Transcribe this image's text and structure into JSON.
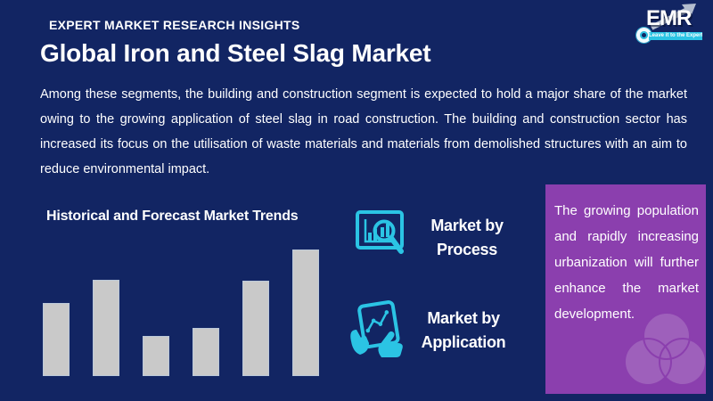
{
  "colors": {
    "background": "#122563",
    "accent_teal": "#2BC4E4",
    "purple_box": "#8B3FAE",
    "bar_fill": "#C9C9C9",
    "logo_arrow": "#B3BDCF",
    "text": "#FFFFFF"
  },
  "header": {
    "tagline": "EXPERT MARKET RESEARCH INSIGHTS",
    "logo": {
      "text": "EMR",
      "slogan": "Leave it to the Expert!"
    }
  },
  "title": "Global Iron and Steel Slag Market",
  "description": "Among these segments, the building and construction segment is expected to hold a major share of the market owing to the growing application of steel slag in road construction. The building and construction sector has increased its focus on the utilisation of waste materials and materials from demolished structures with an aim to reduce environmental impact.",
  "chart_section": {
    "heading": "Historical and Forecast Market Trends"
  },
  "chart_data": {
    "type": "bar",
    "title": "Historical and Forecast Market Trends",
    "categories": [
      "",
      "",
      "",
      "",
      "",
      ""
    ],
    "values": [
      82,
      108,
      45,
      54,
      107,
      142
    ],
    "value_note": "relative bar heights in pixels; chart is decorative with no axes, tick labels, or data labels shown",
    "xlabel": "",
    "ylabel": "",
    "ylim": [
      0,
      145
    ],
    "grid": false,
    "legend": false,
    "bar_color": "#C9C9C9"
  },
  "segments": [
    {
      "label": "Market by Process",
      "icon": "chart-magnifier-icon"
    },
    {
      "label": "Market by Application",
      "icon": "hands-tablet-icon"
    }
  ],
  "highlight_box": {
    "text": "The growing population and rapidly increasing urbanization will further enhance the market development."
  }
}
